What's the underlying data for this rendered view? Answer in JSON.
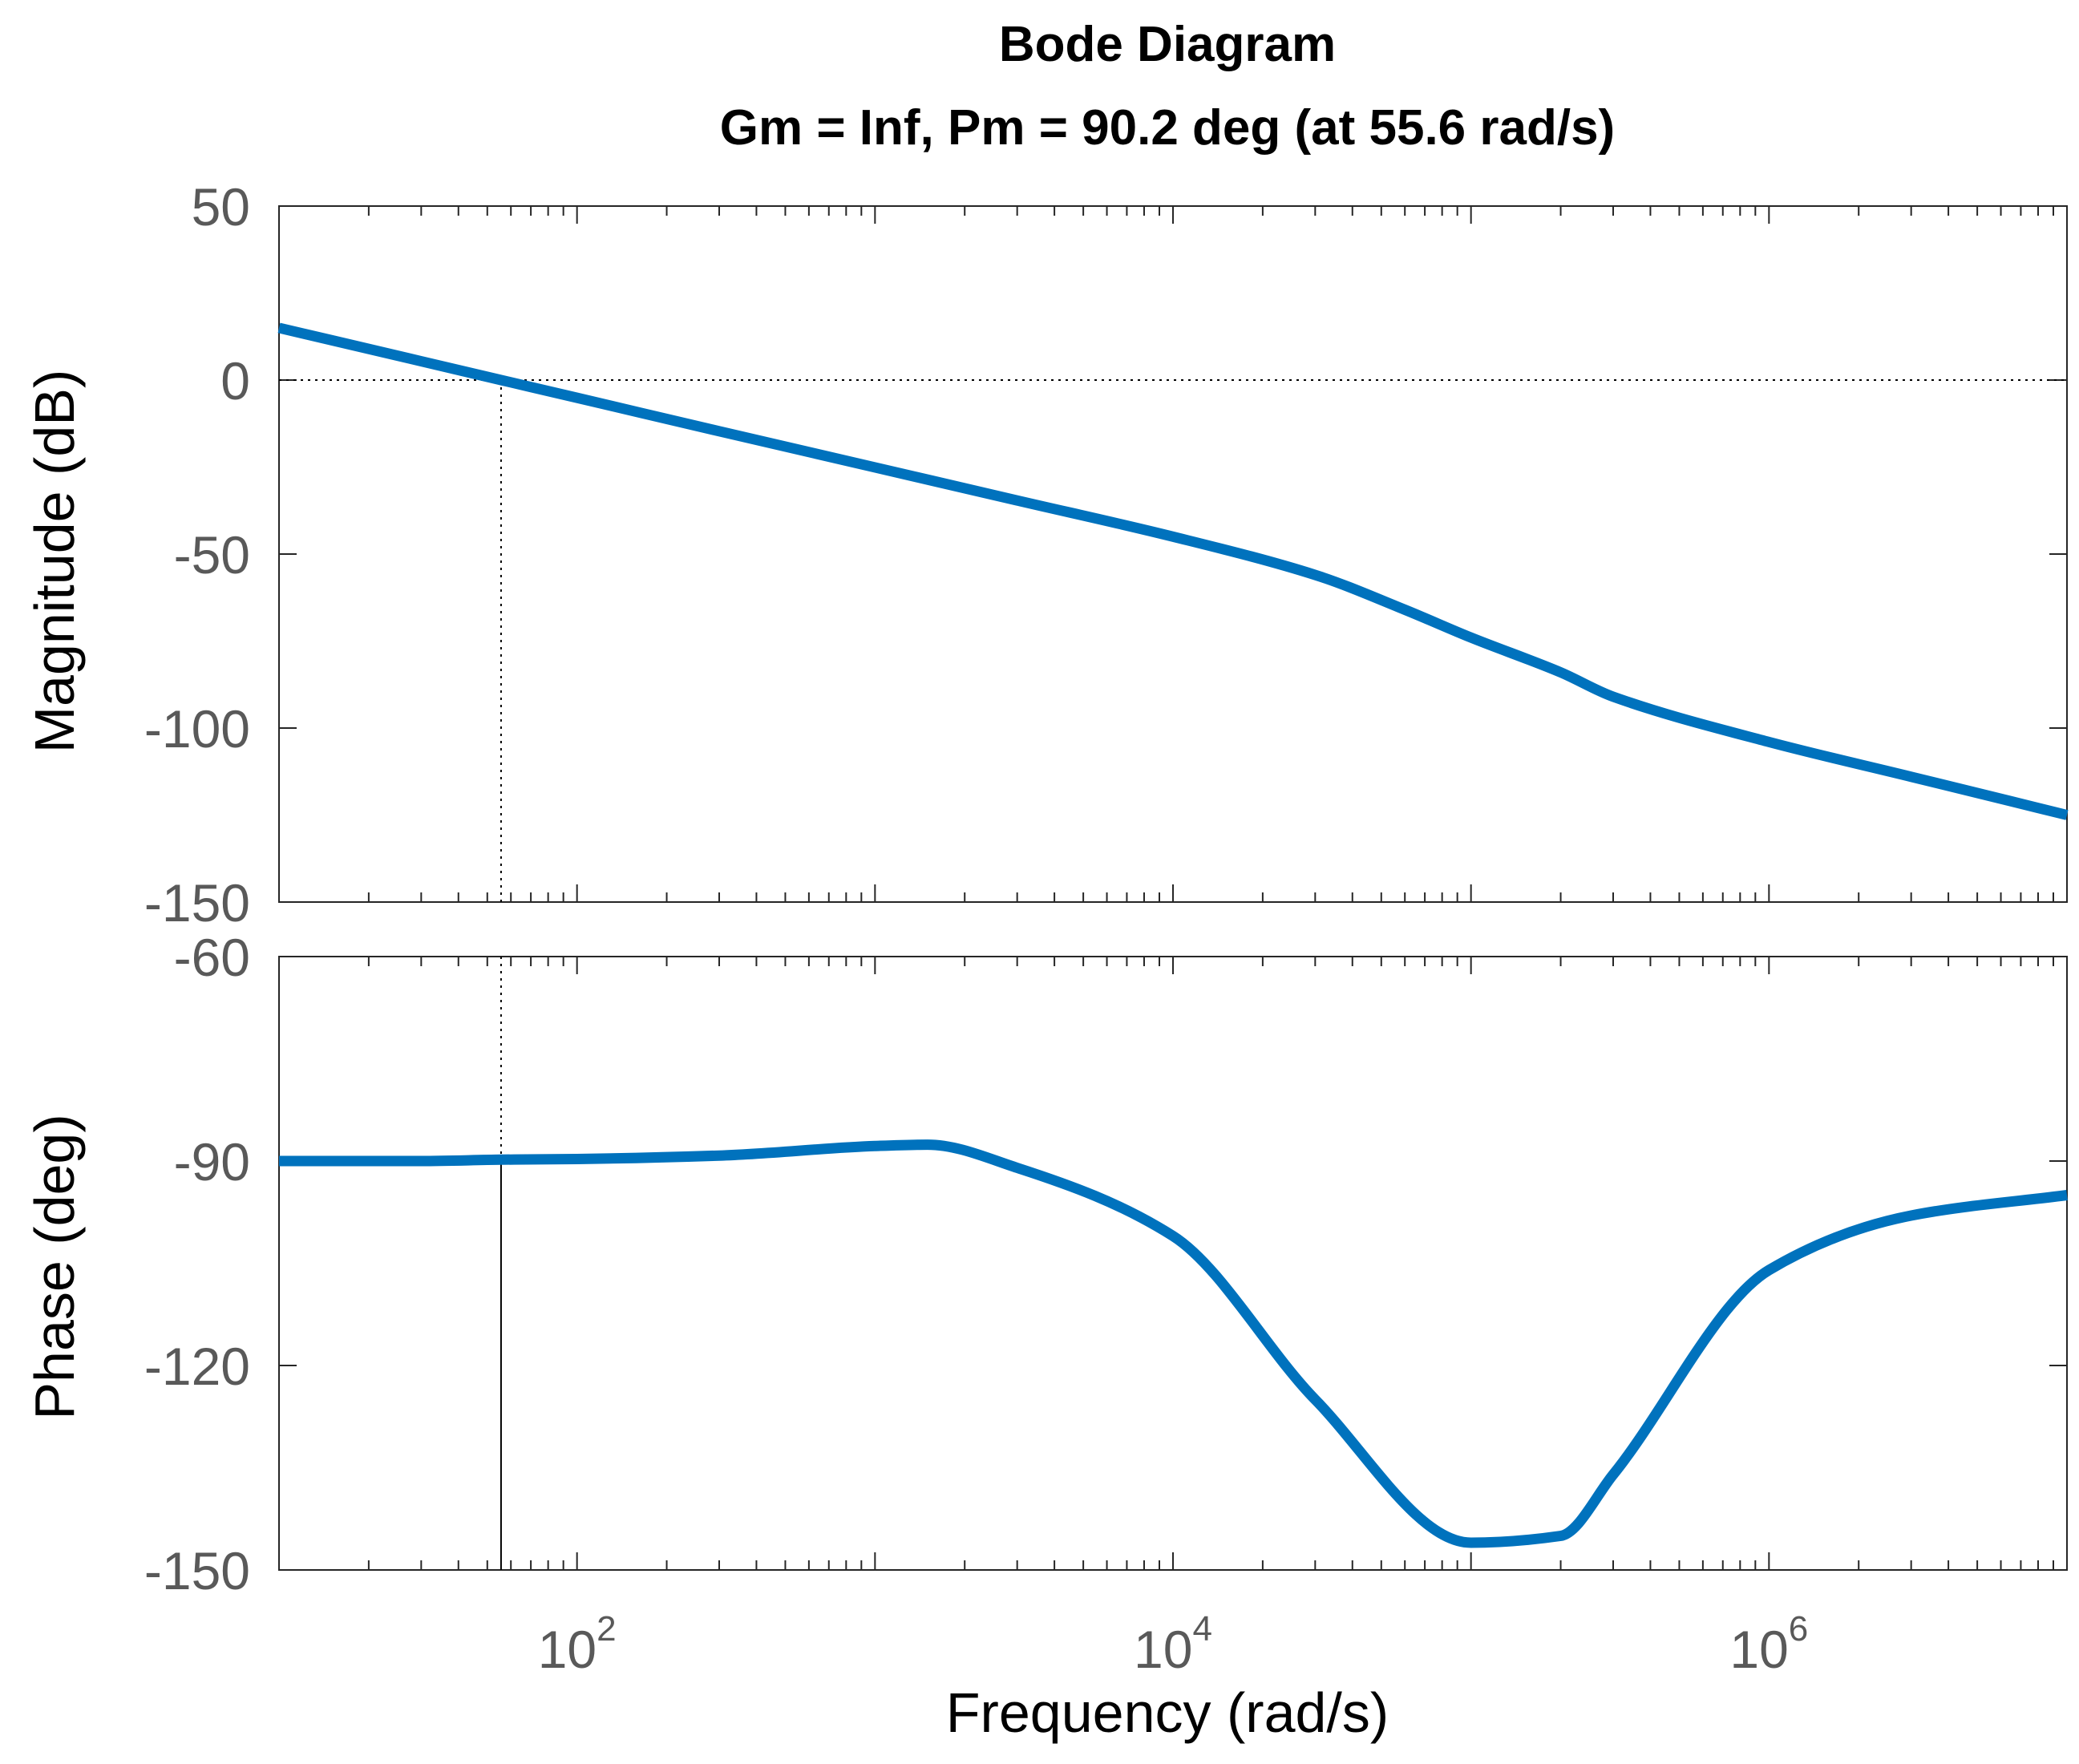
{
  "chart_data": {
    "type": "line",
    "title": "Bode Diagram",
    "subtitle": "Gm = Inf,  Pm = 90.2 deg (at 55.6 rad/s)",
    "xlabel": "Frequency  (rad/s)",
    "xscale": "log",
    "xlim": [
      10,
      10000000
    ],
    "x_ticks": [
      {
        "base": "10",
        "exp": "2",
        "value": 100
      },
      {
        "base": "10",
        "exp": "4",
        "value": 10000
      },
      {
        "base": "10",
        "exp": "6",
        "value": 1000000
      }
    ],
    "line_color": "#0072BD",
    "crossover": {
      "frequency": 55.6,
      "magnitude_db": 0,
      "phase_deg": -89.8
    },
    "panels": [
      {
        "name": "magnitude",
        "ylabel": "Magnitude (dB)",
        "ylim": [
          -150,
          50
        ],
        "y_ticks": [
          "50",
          "0",
          "-50",
          "-100",
          "-150"
        ],
        "y_tick_values": [
          50,
          0,
          -50,
          -100,
          -150
        ],
        "reference_line": 0,
        "series": [
          {
            "name": "Magnitude",
            "x": [
              10,
              30,
              55.6,
              100,
              300,
              1000,
              3000,
              10000,
              30000,
              60000,
              100000,
              200000,
              300000,
              1000000,
              3000000,
              10000000
            ],
            "y": [
              15,
              5.4,
              0,
              -5.1,
              -14.7,
              -25.1,
              -34.6,
              -45,
              -56,
              -66,
              -74,
              -84,
              -91,
              -104,
              -114,
              -125
            ]
          }
        ]
      },
      {
        "name": "phase",
        "ylabel": "Phase (deg)",
        "ylim": [
          -150,
          -60
        ],
        "y_ticks": [
          "-60",
          "-90",
          "-120",
          "-150"
        ],
        "y_tick_values": [
          -60,
          -90,
          -120,
          -150
        ],
        "series": [
          {
            "name": "Phase",
            "x": [
              10,
              30,
              55.6,
              100,
              300,
              1000,
              1500,
              3000,
              10000,
              30000,
              100000,
              200000,
              300000,
              1000000,
              3000000,
              10000000
            ],
            "y": [
              -90,
              -90,
              -89.8,
              -89.7,
              -89.2,
              -87.8,
              -87.6,
              -91,
              -101,
              -125,
              -146,
              -145,
              -136,
              -106,
              -98,
              -95
            ]
          }
        ]
      }
    ]
  }
}
